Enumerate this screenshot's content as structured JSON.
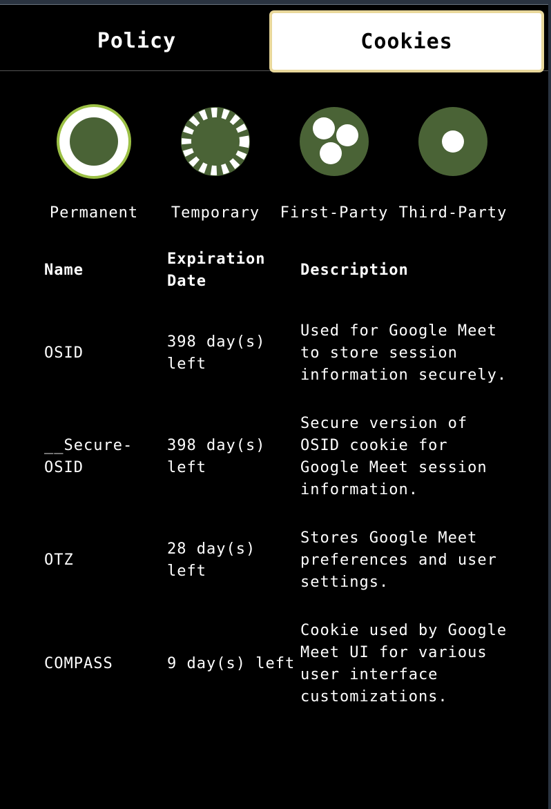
{
  "tabs": {
    "policy": "Policy",
    "cookies": "Cookies",
    "active": "cookies"
  },
  "cookie_types": [
    {
      "label": "Permanent",
      "icon": "permanent-cookie-icon"
    },
    {
      "label": "Temporary",
      "icon": "temporary-cookie-icon"
    },
    {
      "label": "First-Party",
      "icon": "first-party-cookie-icon"
    },
    {
      "label": "Third-Party",
      "icon": "third-party-cookie-icon"
    }
  ],
  "colors": {
    "icon_green": "#4a6336",
    "ring_lime": "#9cc045",
    "tab_border": "#e8d79a"
  },
  "table": {
    "headers": {
      "name": "Name",
      "expiration": "Expiration Date",
      "description": "Description"
    },
    "rows": [
      {
        "name": "OSID",
        "expiration": "398 day(s) left",
        "description": "Used for Google Meet to store session information securely."
      },
      {
        "name": "__Secure-OSID",
        "expiration": "398 day(s) left",
        "description": "Secure version of OSID cookie for Google Meet session information."
      },
      {
        "name": "OTZ",
        "expiration": "28 day(s) left",
        "description": "Stores Google Meet preferences and user settings."
      },
      {
        "name": "COMPASS",
        "expiration": "9 day(s) left",
        "description": "Cookie used by Google Meet UI for various user interface customizations."
      }
    ]
  }
}
